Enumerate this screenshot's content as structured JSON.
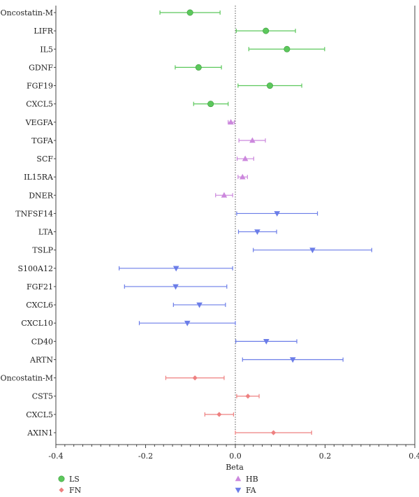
{
  "chart_data": {
    "type": "forest",
    "xlabel": "Beta",
    "xlim": [
      -0.4,
      0.4
    ],
    "xticks": [
      -0.4,
      -0.2,
      0.0,
      0.2,
      0.4
    ],
    "tick_labels": [
      "-0.4",
      "-0.2",
      "0.0",
      "0.2",
      "0.4"
    ],
    "reference_line": 0.0,
    "legend_position": "bottom",
    "groups": [
      {
        "name": "LS",
        "color": "#5cc85c",
        "marker": "circle"
      },
      {
        "name": "HB",
        "color": "#cc88dd",
        "marker": "triangle-up"
      },
      {
        "name": "FA",
        "color": "#6b7de8",
        "marker": "triangle-down"
      },
      {
        "name": "FN",
        "color": "#ee8080",
        "marker": "diamond"
      }
    ],
    "rows": [
      {
        "label": "Oncostatin-M",
        "group": "LS",
        "beta": -0.101,
        "lo": -0.168,
        "hi": -0.034
      },
      {
        "label": "LIFR",
        "group": "LS",
        "beta": 0.068,
        "lo": 0.002,
        "hi": 0.134
      },
      {
        "label": "IL5",
        "group": "LS",
        "beta": 0.115,
        "lo": 0.03,
        "hi": 0.199
      },
      {
        "label": "GDNF",
        "group": "LS",
        "beta": -0.082,
        "lo": -0.134,
        "hi": -0.031
      },
      {
        "label": "FGF19",
        "group": "LS",
        "beta": 0.077,
        "lo": 0.006,
        "hi": 0.148
      },
      {
        "label": "CXCL5",
        "group": "LS",
        "beta": -0.055,
        "lo": -0.093,
        "hi": -0.016
      },
      {
        "label": "VEGFA",
        "group": "HB",
        "beta": -0.01,
        "lo": -0.016,
        "hi": -0.002
      },
      {
        "label": "TGFA",
        "group": "HB",
        "beta": 0.038,
        "lo": 0.008,
        "hi": 0.067
      },
      {
        "label": "SCF",
        "group": "HB",
        "beta": 0.022,
        "lo": 0.004,
        "hi": 0.041
      },
      {
        "label": "IL15RA",
        "group": "HB",
        "beta": 0.016,
        "lo": 0.006,
        "hi": 0.027
      },
      {
        "label": "DNER",
        "group": "HB",
        "beta": -0.025,
        "lo": -0.044,
        "hi": -0.006
      },
      {
        "label": "TNFSF14",
        "group": "FA",
        "beta": 0.093,
        "lo": 0.003,
        "hi": 0.183
      },
      {
        "label": "LTA",
        "group": "FA",
        "beta": 0.049,
        "lo": 0.007,
        "hi": 0.092
      },
      {
        "label": "TSLP",
        "group": "FA",
        "beta": 0.172,
        "lo": 0.04,
        "hi": 0.304
      },
      {
        "label": "S100A12",
        "group": "FA",
        "beta": -0.132,
        "lo": -0.259,
        "hi": -0.006
      },
      {
        "label": "FGF21",
        "group": "FA",
        "beta": -0.133,
        "lo": -0.247,
        "hi": -0.019
      },
      {
        "label": "CXCL6",
        "group": "FA",
        "beta": -0.08,
        "lo": -0.138,
        "hi": -0.022
      },
      {
        "label": "CXCL10",
        "group": "FA",
        "beta": -0.107,
        "lo": -0.214,
        "hi": 0.0
      },
      {
        "label": "CD40",
        "group": "FA",
        "beta": 0.069,
        "lo": 0.001,
        "hi": 0.137
      },
      {
        "label": "ARTN",
        "group": "FA",
        "beta": 0.128,
        "lo": 0.016,
        "hi": 0.24
      },
      {
        "label": "Oncostatin-M",
        "group": "FN",
        "beta": -0.09,
        "lo": -0.155,
        "hi": -0.025
      },
      {
        "label": "CST5",
        "group": "FN",
        "beta": 0.028,
        "lo": 0.003,
        "hi": 0.053
      },
      {
        "label": "CXCL5",
        "group": "FN",
        "beta": -0.036,
        "lo": -0.068,
        "hi": -0.004
      },
      {
        "label": "AXIN1",
        "group": "FN",
        "beta": 0.085,
        "lo": 0.0,
        "hi": 0.17
      }
    ]
  }
}
